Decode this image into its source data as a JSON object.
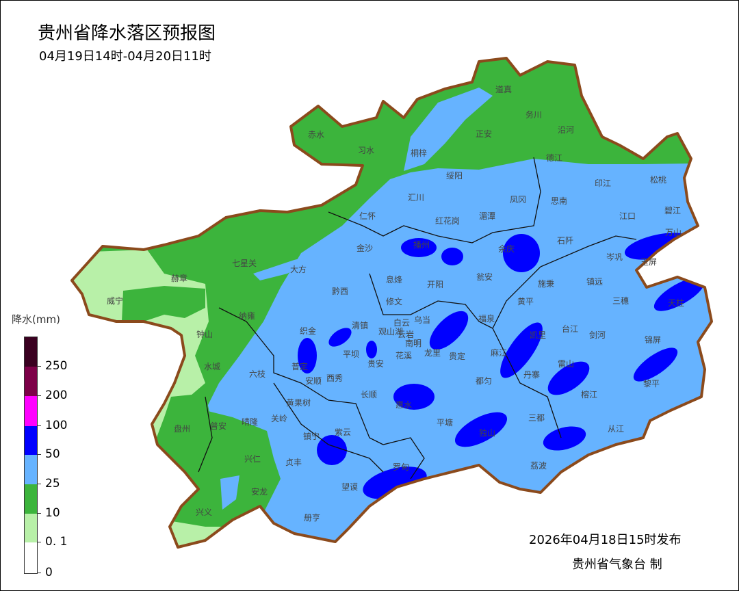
{
  "header": {
    "title": "贵州省降水落区预报图",
    "subtitle": "04月19日14时-04月20日11时"
  },
  "legend": {
    "title": "降水(mm)",
    "ticks": [
      "250",
      "200",
      "100",
      "50",
      "25",
      "10",
      "0. 1",
      "0"
    ],
    "colors": [
      "#3a0020",
      "#7d0048",
      "#ff00ff",
      "#0000ff",
      "#66b3ff",
      "#3cb43c",
      "#b8f0a8",
      "#ffffff"
    ]
  },
  "map": {
    "colors": {
      "border": "#8b4a1c",
      "level_0_1_10": "#b8f0a8",
      "level_10_25": "#3cb43c",
      "level_25_50": "#66b3ff",
      "level_50_100": "#0000ff"
    },
    "counties": [
      "道真",
      "务川",
      "沿河",
      "赤水",
      "习水",
      "桐梓",
      "正安",
      "德江",
      "绥阳",
      "印江",
      "松桃",
      "汇川",
      "凤冈",
      "思南",
      "仁怀",
      "红花岗",
      "湄潭",
      "江口",
      "碧江",
      "万山",
      "石阡",
      "播州",
      "余庆",
      "岑巩",
      "玉屏",
      "金沙",
      "七星关",
      "大方",
      "赫章",
      "威宁",
      "息烽",
      "开阳",
      "瓮安",
      "施秉",
      "镇远",
      "黔西",
      "修文",
      "黄平",
      "三穗",
      "天柱",
      "纳雍",
      "钟山",
      "织金",
      "清镇",
      "白云",
      "乌当",
      "观山湖",
      "云岩",
      "南明",
      "福泉",
      "凯里",
      "台江",
      "剑河",
      "锦屏",
      "龙里",
      "贵定",
      "麻江",
      "平坝",
      "花溪",
      "贵安",
      "水城",
      "六枝",
      "普定",
      "安顺",
      "西秀",
      "雷山",
      "丹寨",
      "榕江",
      "黎平",
      "都匀",
      "长顺",
      "惠水",
      "黄果树",
      "关岭",
      "晴隆",
      "盘州",
      "普安",
      "平塘",
      "三都",
      "镇宁",
      "紫云",
      "独山",
      "从江",
      "兴仁",
      "贞丰",
      "罗甸",
      "荔波",
      "望谟",
      "安龙",
      "兴义",
      "册亨"
    ]
  },
  "footer": {
    "issue_time": "2026年04月18日15时发布",
    "maker": "贵州省气象台  制"
  }
}
